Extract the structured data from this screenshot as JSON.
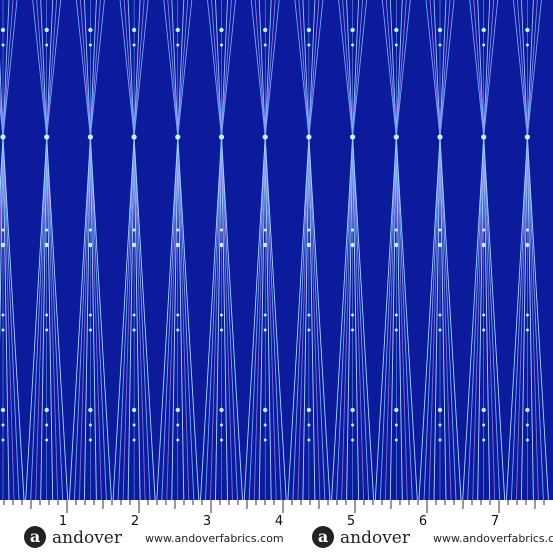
{
  "ruler": {
    "numbers": [
      "1",
      "2",
      "3",
      "4",
      "5",
      "6",
      "7"
    ]
  },
  "brand": {
    "logo": "a",
    "name": "andover",
    "url": "www.andoverfabrics.com"
  }
}
